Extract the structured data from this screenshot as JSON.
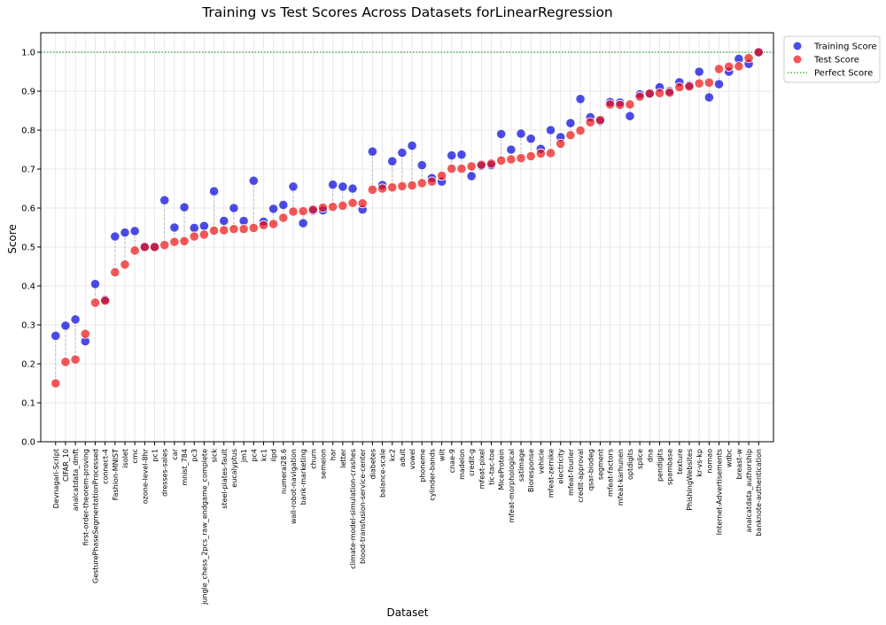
{
  "chart_data": {
    "type": "scatter",
    "title": "Training vs Test Scores Across Datasets forLinearRegression",
    "xlabel": "Dataset",
    "ylabel": "Score",
    "ylim": [
      0.0,
      1.05
    ],
    "yticks": [
      "0.0",
      "0.1",
      "0.2",
      "0.3",
      "0.4",
      "0.5",
      "0.6",
      "0.7",
      "0.8",
      "0.9",
      "1.0"
    ],
    "grid": true,
    "legend_position": "upper right, outside plot",
    "reference_line": {
      "name": "Perfect Score",
      "value": 1.0,
      "color": "#2ca02c",
      "style": "dotted"
    },
    "categories": [
      "Devnagari-Script",
      "CIFAR_10",
      "analcatdata_dmft",
      "first-order-theorem-proving",
      "GesturePhaseSegmentationProcessed",
      "connect-4",
      "Fashion-MNIST",
      "isolet",
      "cmc",
      "ozone-level-8hr",
      "pc1",
      "dresses-sales",
      "car",
      "mnist_784",
      "pc3",
      "jungle_chess_2pcs_raw_endgame_complete",
      "sick",
      "steel-plates-fault",
      "eucalyptus",
      "jm1",
      "pc4",
      "kc1",
      "ilpd",
      "numerai28.6",
      "wall-robot-navigation",
      "bank-marketing",
      "churn",
      "semeion",
      "har",
      "letter",
      "climate-model-simulation-crashes",
      "blood-transfusion-service-center",
      "diabetes",
      "balance-scale",
      "kc2",
      "adult",
      "vowel",
      "phoneme",
      "cylinder-bands",
      "wilt",
      "cnae-9",
      "madelon",
      "credit-g",
      "mfeat-pixel",
      "tic-tac-toe",
      "MiceProtein",
      "mfeat-morphological",
      "satimage",
      "Bioresponse",
      "vehicle",
      "mfeat-zernike",
      "electricity",
      "mfeat-fourier",
      "credit-approval",
      "qsar-biodeg",
      "segment",
      "mfeat-factors",
      "mfeat-karhunen",
      "optdigits",
      "splice",
      "dna",
      "pendigits",
      "spambase",
      "texture",
      "PhishingWebsites",
      "kr-vs-kp",
      "nomao",
      "Internet-Advertisements",
      "wdbc",
      "breast-w",
      "analcatdata_authorship",
      "banknote-authentication"
    ],
    "series": [
      {
        "name": "Training Score",
        "color": "#0000dd",
        "values": [
          0.272,
          0.298,
          0.314,
          0.258,
          0.405,
          0.365,
          0.527,
          0.537,
          0.541,
          0.5,
          0.5,
          0.62,
          0.55,
          0.602,
          0.549,
          0.554,
          0.643,
          0.567,
          0.6,
          0.567,
          0.67,
          0.565,
          0.598,
          0.608,
          0.655,
          0.561,
          0.593,
          0.594,
          0.66,
          0.655,
          0.65,
          0.596,
          0.745,
          0.659,
          0.72,
          0.742,
          0.76,
          0.71,
          0.677,
          0.668,
          0.735,
          0.737,
          0.682,
          0.708,
          0.71,
          0.79,
          0.75,
          0.791,
          0.778,
          0.752,
          0.8,
          0.782,
          0.818,
          0.88,
          0.833,
          0.823,
          0.872,
          0.871,
          0.836,
          0.892,
          0.893,
          0.91,
          0.9,
          0.923,
          0.915,
          0.95,
          0.884,
          0.918,
          0.95,
          0.983,
          0.97,
          1.0
        ]
      },
      {
        "name": "Test Score",
        "color": "#ee1111",
        "values": [
          0.15,
          0.205,
          0.211,
          0.277,
          0.357,
          0.362,
          0.435,
          0.455,
          0.491,
          0.5,
          0.5,
          0.505,
          0.513,
          0.515,
          0.527,
          0.532,
          0.542,
          0.543,
          0.546,
          0.546,
          0.549,
          0.556,
          0.559,
          0.575,
          0.591,
          0.592,
          0.596,
          0.601,
          0.603,
          0.606,
          0.613,
          0.612,
          0.647,
          0.65,
          0.653,
          0.656,
          0.658,
          0.664,
          0.668,
          0.683,
          0.701,
          0.701,
          0.707,
          0.711,
          0.714,
          0.722,
          0.725,
          0.728,
          0.733,
          0.74,
          0.741,
          0.765,
          0.787,
          0.799,
          0.82,
          0.826,
          0.866,
          0.865,
          0.866,
          0.886,
          0.894,
          0.895,
          0.896,
          0.91,
          0.912,
          0.92,
          0.922,
          0.957,
          0.963,
          0.964,
          0.985,
          1.0
        ]
      }
    ]
  }
}
